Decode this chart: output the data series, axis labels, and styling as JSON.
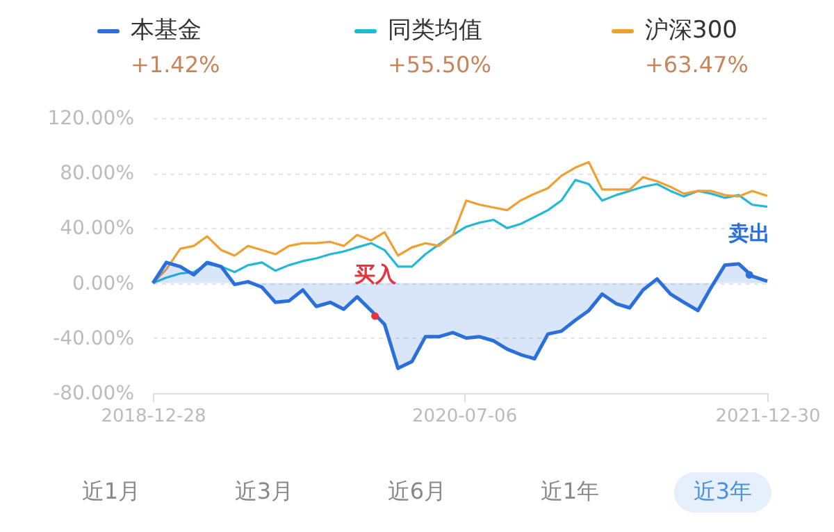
{
  "chart_data": {
    "type": "line",
    "x": [
      "2018-12-28",
      "2019-01-21",
      "2019-02-15",
      "2019-03-11",
      "2019-04-04",
      "2019-04-29",
      "2019-05-23",
      "2019-06-16",
      "2019-07-11",
      "2019-08-04",
      "2019-08-28",
      "2019-09-22",
      "2019-10-16",
      "2019-11-10",
      "2019-12-04",
      "2019-12-28",
      "2020-01-22",
      "2020-02-15",
      "2020-03-10",
      "2020-04-04",
      "2020-04-28",
      "2020-05-22",
      "2020-06-16",
      "2020-07-10",
      "2020-08-03",
      "2020-08-28",
      "2020-09-21",
      "2020-10-15",
      "2020-11-09",
      "2020-12-03",
      "2020-12-27",
      "2021-01-21",
      "2021-02-14",
      "2021-03-10",
      "2021-04-04",
      "2021-04-28",
      "2021-05-22",
      "2021-06-16",
      "2021-07-10",
      "2021-08-03",
      "2021-08-28",
      "2021-09-21",
      "2021-10-15",
      "2021-11-09",
      "2021-12-03",
      "2021-12-30"
    ],
    "series": [
      {
        "name": "本基金",
        "type": "area",
        "color": "#2a6fdb",
        "values": [
          0,
          15,
          12,
          6,
          15,
          12,
          -1,
          1,
          -3,
          -14,
          -13,
          -5,
          -17,
          -14,
          -19,
          -10,
          -20,
          -30,
          -62,
          -57,
          -39,
          -39,
          -36,
          -40,
          -39,
          -42,
          -48,
          -52,
          -55,
          -37,
          -35,
          -27,
          -20,
          -8,
          -15,
          -18,
          -5,
          3,
          -8,
          -14,
          -20,
          -3,
          13,
          14,
          5,
          1.42
        ]
      },
      {
        "name": "同类均值",
        "color": "#22b8d8",
        "values": [
          0,
          4,
          7,
          8,
          14,
          12,
          8,
          13,
          15,
          9,
          13,
          16,
          18,
          21,
          23,
          26,
          29,
          24,
          12,
          12,
          21,
          28,
          35,
          41,
          44,
          46,
          40,
          43,
          48,
          53,
          60,
          75,
          72,
          60,
          64,
          67,
          70,
          72,
          67,
          63,
          67,
          65,
          62,
          64,
          57,
          55.5
        ]
      },
      {
        "name": "沪深300",
        "color": "#f0a030",
        "values": [
          0,
          10,
          25,
          27,
          34,
          24,
          20,
          27,
          24,
          21,
          27,
          29,
          29,
          30,
          27,
          35,
          31,
          37,
          20,
          26,
          29,
          27,
          35,
          60,
          57,
          55,
          53,
          60,
          65,
          69,
          78,
          84,
          88,
          68,
          68,
          68,
          77,
          74,
          70,
          65,
          67,
          67,
          64,
          63,
          67,
          63.47
        ]
      }
    ],
    "xlim": [
      "2018-12-28",
      "2021-12-30"
    ],
    "xticks": [
      "2018-12-28",
      "2020-07-06",
      "2021-12-30"
    ],
    "ylim": [
      -80,
      120
    ],
    "yticks": [
      {
        "value": -80,
        "label": "-80.00%"
      },
      {
        "value": -40,
        "label": "-40.00%"
      },
      {
        "value": 0,
        "label": "0.00%"
      },
      {
        "value": 40,
        "label": "40.00%"
      },
      {
        "value": 80,
        "label": "80.00%"
      },
      {
        "value": 120,
        "label": "120.00%"
      }
    ],
    "grid": "y",
    "legend": "top",
    "annotations": [
      {
        "text": "买入",
        "x": "2020-01-29",
        "y": -24
      },
      {
        "text": "卖出",
        "x": "2021-11-28",
        "y": 6
      },
      "+1.42%",
      "+55.50%",
      "+63.47%",
      "近1月",
      "近3月",
      "近6月",
      "近1年",
      "近3年"
    ]
  }
}
